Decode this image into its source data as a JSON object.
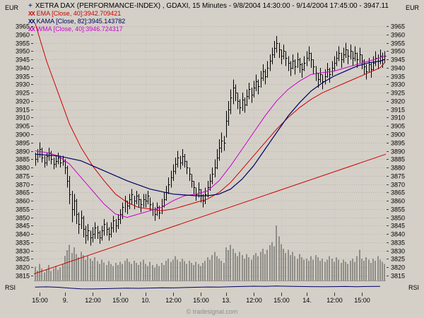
{
  "window": {
    "bg": "#d4d0c8"
  },
  "header": {
    "icon": "+",
    "title": "XETRA DAX (PERFORMANCE-INDEX) , GDAXI, 15 Minutes - 9/8/2004 14:30:00 - 9/14/2004 17:45:00 - 3947.11"
  },
  "legend": [
    {
      "marker": "XX",
      "label": "EMA [Close, 40]:3942.709421",
      "color": "#d00000"
    },
    {
      "marker": "XX",
      "label": "KAMA [Close, 82]:3945.143782",
      "color": "#000060"
    },
    {
      "marker": "XX",
      "label": "WMA [Close, 40]:3946.724317",
      "color": "#cc00cc"
    }
  ],
  "axes": {
    "left_unit": "EUR",
    "right_unit": "EUR",
    "bottom_left_unit": "RSI",
    "bottom_right_unit": "RSI",
    "price_ticks": [
      3965,
      3960,
      3955,
      3950,
      3945,
      3940,
      3935,
      3930,
      3925,
      3920,
      3915,
      3910,
      3905,
      3900,
      3895,
      3890,
      3885,
      3880,
      3875,
      3870,
      3865,
      3860,
      3855,
      3850,
      3845,
      3840,
      3835,
      3830,
      3825,
      3820,
      3815
    ],
    "x_ticks": [
      {
        "label": "15:00",
        "bar": 2
      },
      {
        "label": "9.",
        "bar": 13
      },
      {
        "label": "12:00",
        "bar": 25
      },
      {
        "label": "15:00",
        "bar": 37
      },
      {
        "label": "10.",
        "bar": 48
      },
      {
        "label": "12:00",
        "bar": 60
      },
      {
        "label": "15:00",
        "bar": 72
      },
      {
        "label": "13.",
        "bar": 83
      },
      {
        "label": "12:00",
        "bar": 95
      },
      {
        "label": "15:00",
        "bar": 107
      },
      {
        "label": "14.",
        "bar": 118
      },
      {
        "label": "12:00",
        "bar": 130
      },
      {
        "label": "15:00",
        "bar": 142
      }
    ]
  },
  "footer": {
    "text": "© tradesignal.com"
  },
  "chart_data": {
    "type": "bar",
    "subtype": "ohlc-hlc-bars-with-volume",
    "instrument": "XETRA DAX (PERFORMANCE-INDEX)",
    "symbol": "GDAXI",
    "interval": "15 Minutes",
    "range_start": "9/8/2004 14:30:00",
    "range_end": "9/14/2004 17:45:00",
    "last_price": 3947.11,
    "ylim": [
      3812,
      3968
    ],
    "colors": {
      "bg": "#d4d0c8",
      "grid": "#b9b5ae",
      "vgrid": "#c6c2bb",
      "bar": "#000000",
      "volume": "#8f8d87",
      "pane_line": "#9a968f",
      "tick": "#3c3c3c",
      "ema": "#d00000",
      "kama": "#000066",
      "wma": "#cc00cc",
      "trendline": "#d00000",
      "rsi": "#000066"
    },
    "day_start_bars": [
      13,
      48,
      83,
      118
    ],
    "bars_hlc": [
      [
        3889,
        3881,
        3885
      ],
      [
        3891,
        3883,
        3888
      ],
      [
        3895,
        3886,
        3891
      ],
      [
        3892,
        3883,
        3886
      ],
      [
        3887,
        3880,
        3883
      ],
      [
        3889,
        3881,
        3887
      ],
      [
        3892,
        3884,
        3889
      ],
      [
        3890,
        3882,
        3885
      ],
      [
        3886,
        3879,
        3882
      ],
      [
        3887,
        3880,
        3884
      ],
      [
        3889,
        3882,
        3886
      ],
      [
        3887,
        3880,
        3883
      ],
      [
        3887,
        3881,
        3884
      ],
      [
        3885,
        3876,
        3880
      ],
      [
        3881,
        3868,
        3872
      ],
      [
        3875,
        3858,
        3864
      ],
      [
        3866,
        3847,
        3855
      ],
      [
        3864,
        3851,
        3860
      ],
      [
        3861,
        3846,
        3852
      ],
      [
        3853,
        3840,
        3846
      ],
      [
        3854,
        3843,
        3850
      ],
      [
        3851,
        3838,
        3843
      ],
      [
        3845,
        3834,
        3839
      ],
      [
        3846,
        3836,
        3842
      ],
      [
        3842,
        3833,
        3838
      ],
      [
        3844,
        3835,
        3840
      ],
      [
        3847,
        3837,
        3844
      ],
      [
        3845,
        3837,
        3841
      ],
      [
        3842,
        3834,
        3838
      ],
      [
        3845,
        3836,
        3842
      ],
      [
        3849,
        3839,
        3846
      ],
      [
        3847,
        3839,
        3843
      ],
      [
        3844,
        3836,
        3840
      ],
      [
        3847,
        3838,
        3844
      ],
      [
        3851,
        3841,
        3848
      ],
      [
        3849,
        3841,
        3845
      ],
      [
        3852,
        3843,
        3849
      ],
      [
        3855,
        3846,
        3852
      ],
      [
        3859,
        3849,
        3856
      ],
      [
        3863,
        3853,
        3860
      ],
      [
        3860,
        3852,
        3857
      ],
      [
        3864,
        3855,
        3861
      ],
      [
        3867,
        3858,
        3864
      ],
      [
        3863,
        3855,
        3860
      ],
      [
        3866,
        3858,
        3863
      ],
      [
        3864,
        3856,
        3861
      ],
      [
        3861,
        3853,
        3858
      ],
      [
        3864,
        3856,
        3861
      ],
      [
        3864,
        3856,
        3860
      ],
      [
        3866,
        3858,
        3863
      ],
      [
        3862,
        3854,
        3858
      ],
      [
        3859,
        3851,
        3855
      ],
      [
        3856,
        3848,
        3852
      ],
      [
        3859,
        3851,
        3856
      ],
      [
        3857,
        3849,
        3853
      ],
      [
        3861,
        3852,
        3857
      ],
      [
        3865,
        3856,
        3861
      ],
      [
        3869,
        3860,
        3865
      ],
      [
        3874,
        3864,
        3870
      ],
      [
        3878,
        3868,
        3874
      ],
      [
        3882,
        3872,
        3878
      ],
      [
        3886,
        3876,
        3882
      ],
      [
        3890,
        3880,
        3886
      ],
      [
        3887,
        3879,
        3883
      ],
      [
        3891,
        3881,
        3887
      ],
      [
        3888,
        3880,
        3884
      ],
      [
        3884,
        3876,
        3880
      ],
      [
        3880,
        3872,
        3876
      ],
      [
        3876,
        3868,
        3872
      ],
      [
        3872,
        3864,
        3868
      ],
      [
        3868,
        3860,
        3864
      ],
      [
        3871,
        3862,
        3867
      ],
      [
        3867,
        3859,
        3863
      ],
      [
        3864,
        3856,
        3860
      ],
      [
        3868,
        3858,
        3864
      ],
      [
        3872,
        3862,
        3868
      ],
      [
        3876,
        3866,
        3872
      ],
      [
        3880,
        3870,
        3876
      ],
      [
        3885,
        3874,
        3880
      ],
      [
        3891,
        3879,
        3886
      ],
      [
        3897,
        3884,
        3892
      ],
      [
        3901,
        3889,
        3896
      ],
      [
        3899,
        3890,
        3895
      ],
      [
        3914,
        3898,
        3908
      ],
      [
        3920,
        3905,
        3915
      ],
      [
        3927,
        3912,
        3922
      ],
      [
        3933,
        3918,
        3928
      ],
      [
        3930,
        3920,
        3925
      ],
      [
        3925,
        3915,
        3920
      ],
      [
        3921,
        3912,
        3916
      ],
      [
        3925,
        3914,
        3921
      ],
      [
        3922,
        3913,
        3918
      ],
      [
        3927,
        3917,
        3923
      ],
      [
        3931,
        3921,
        3927
      ],
      [
        3928,
        3919,
        3924
      ],
      [
        3932,
        3922,
        3928
      ],
      [
        3936,
        3926,
        3932
      ],
      [
        3933,
        3924,
        3929
      ],
      [
        3938,
        3928,
        3934
      ],
      [
        3942,
        3932,
        3938
      ],
      [
        3939,
        3930,
        3935
      ],
      [
        3944,
        3934,
        3940
      ],
      [
        3948,
        3938,
        3944
      ],
      [
        3952,
        3942,
        3948
      ],
      [
        3956,
        3946,
        3952
      ],
      [
        3959,
        3949,
        3955
      ],
      [
        3955,
        3946,
        3951
      ],
      [
        3951,
        3942,
        3947
      ],
      [
        3954,
        3945,
        3950
      ],
      [
        3950,
        3941,
        3946
      ],
      [
        3947,
        3938,
        3943
      ],
      [
        3944,
        3935,
        3940
      ],
      [
        3948,
        3939,
        3944
      ],
      [
        3945,
        3936,
        3941
      ],
      [
        3949,
        3940,
        3945
      ],
      [
        3946,
        3937,
        3942
      ],
      [
        3943,
        3934,
        3939
      ],
      [
        3947,
        3938,
        3943
      ],
      [
        3950,
        3941,
        3946
      ],
      [
        3953,
        3944,
        3949
      ],
      [
        3949,
        3940,
        3945
      ],
      [
        3945,
        3936,
        3941
      ],
      [
        3941,
        3932,
        3937
      ],
      [
        3937,
        3928,
        3933
      ],
      [
        3940,
        3931,
        3936
      ],
      [
        3936,
        3927,
        3932
      ],
      [
        3939,
        3930,
        3935
      ],
      [
        3943,
        3934,
        3939
      ],
      [
        3940,
        3931,
        3936
      ],
      [
        3944,
        3935,
        3940
      ],
      [
        3947,
        3938,
        3943
      ],
      [
        3950,
        3941,
        3946
      ],
      [
        3953,
        3944,
        3949
      ],
      [
        3949,
        3940,
        3945
      ],
      [
        3952,
        3943,
        3948
      ],
      [
        3955,
        3946,
        3951
      ],
      [
        3951,
        3942,
        3947
      ],
      [
        3954,
        3945,
        3950
      ],
      [
        3950,
        3941,
        3946
      ],
      [
        3953,
        3944,
        3949
      ],
      [
        3949,
        3940,
        3945
      ],
      [
        3952,
        3943,
        3948
      ],
      [
        3948,
        3939,
        3944
      ],
      [
        3945,
        3936,
        3941
      ],
      [
        3942,
        3933,
        3938
      ],
      [
        3946,
        3937,
        3942
      ],
      [
        3943,
        3934,
        3939
      ],
      [
        3947,
        3938,
        3943
      ],
      [
        3950,
        3941,
        3946
      ],
      [
        3948,
        3939,
        3944
      ],
      [
        3951,
        3942,
        3947
      ],
      [
        3949,
        3940,
        3945
      ],
      [
        3950,
        3943,
        3947
      ]
    ],
    "volume": [
      25,
      18,
      30,
      22,
      15,
      20,
      28,
      17,
      22,
      26,
      19,
      24,
      30,
      45,
      55,
      65,
      50,
      60,
      48,
      42,
      52,
      46,
      38,
      44,
      40,
      36,
      42,
      35,
      30,
      38,
      33,
      28,
      35,
      30,
      26,
      32,
      28,
      34,
      30,
      36,
      40,
      34,
      30,
      36,
      32,
      28,
      34,
      38,
      30,
      26,
      34,
      28,
      24,
      30,
      26,
      32,
      28,
      36,
      40,
      34,
      38,
      44,
      38,
      34,
      40,
      35,
      30,
      36,
      32,
      28,
      34,
      30,
      26,
      32,
      36,
      42,
      38,
      46,
      52,
      44,
      40,
      36,
      32,
      60,
      55,
      65,
      58,
      50,
      44,
      52,
      46,
      40,
      48,
      42,
      38,
      46,
      50,
      44,
      52,
      58,
      48,
      56,
      64,
      70,
      62,
      100,
      80,
      66,
      58,
      50,
      56,
      46,
      52,
      44,
      40,
      48,
      42,
      38,
      40,
      36,
      44,
      38,
      46,
      42,
      36,
      40,
      34,
      38,
      44,
      40,
      34,
      42,
      38,
      32,
      38,
      34,
      30,
      36,
      40,
      34,
      44,
      56,
      40,
      36,
      42,
      38,
      32,
      40,
      36,
      44,
      38,
      34,
      30
    ],
    "overlays": {
      "ema": {
        "name": "EMA [Close, 40]",
        "last": 3942.709421,
        "points": [
          [
            0,
            3967
          ],
          [
            5,
            3944
          ],
          [
            10,
            3925
          ],
          [
            15,
            3906
          ],
          [
            20,
            3892
          ],
          [
            25,
            3881
          ],
          [
            30,
            3872
          ],
          [
            35,
            3864
          ],
          [
            40,
            3859
          ],
          [
            45,
            3856
          ],
          [
            50,
            3855
          ],
          [
            55,
            3854
          ],
          [
            60,
            3855
          ],
          [
            65,
            3857
          ],
          [
            70,
            3859
          ],
          [
            75,
            3861
          ],
          [
            80,
            3865
          ],
          [
            85,
            3871
          ],
          [
            90,
            3879
          ],
          [
            95,
            3887
          ],
          [
            100,
            3895
          ],
          [
            105,
            3903
          ],
          [
            110,
            3910
          ],
          [
            115,
            3916
          ],
          [
            120,
            3921
          ],
          [
            125,
            3925
          ],
          [
            130,
            3928
          ],
          [
            135,
            3931
          ],
          [
            140,
            3934
          ],
          [
            145,
            3937
          ],
          [
            150,
            3940
          ],
          [
            152,
            3943
          ]
        ]
      },
      "kama": {
        "name": "KAMA [Close, 82]",
        "last": 3945.143782,
        "points": [
          [
            0,
            3888
          ],
          [
            10,
            3887
          ],
          [
            20,
            3884
          ],
          [
            30,
            3878
          ],
          [
            40,
            3872
          ],
          [
            50,
            3867
          ],
          [
            60,
            3864
          ],
          [
            70,
            3863
          ],
          [
            75,
            3863
          ],
          [
            80,
            3864
          ],
          [
            85,
            3867
          ],
          [
            90,
            3873
          ],
          [
            95,
            3881
          ],
          [
            100,
            3891
          ],
          [
            105,
            3901
          ],
          [
            110,
            3911
          ],
          [
            115,
            3919
          ],
          [
            120,
            3926
          ],
          [
            125,
            3931
          ],
          [
            130,
            3935
          ],
          [
            135,
            3938
          ],
          [
            140,
            3941
          ],
          [
            145,
            3943
          ],
          [
            150,
            3944
          ],
          [
            152,
            3945
          ]
        ]
      },
      "wma": {
        "name": "WMA [Close, 40]",
        "last": 3946.724317,
        "points": [
          [
            0,
            3890
          ],
          [
            5,
            3889
          ],
          [
            10,
            3887
          ],
          [
            15,
            3882
          ],
          [
            20,
            3874
          ],
          [
            25,
            3866
          ],
          [
            30,
            3858
          ],
          [
            35,
            3852
          ],
          [
            40,
            3850
          ],
          [
            45,
            3852
          ],
          [
            50,
            3854
          ],
          [
            55,
            3856
          ],
          [
            60,
            3860
          ],
          [
            65,
            3863
          ],
          [
            70,
            3864
          ],
          [
            75,
            3866
          ],
          [
            80,
            3872
          ],
          [
            85,
            3881
          ],
          [
            90,
            3891
          ],
          [
            95,
            3901
          ],
          [
            100,
            3911
          ],
          [
            105,
            3920
          ],
          [
            110,
            3927
          ],
          [
            115,
            3932
          ],
          [
            120,
            3936
          ],
          [
            125,
            3937
          ],
          [
            130,
            3938
          ],
          [
            135,
            3940
          ],
          [
            140,
            3942
          ],
          [
            145,
            3944
          ],
          [
            150,
            3946
          ],
          [
            152,
            3947
          ]
        ]
      },
      "trendline": {
        "from": [
          0,
          3816
        ],
        "to": [
          152,
          3888
        ]
      }
    },
    "rsi": {
      "step": 5,
      "values": [
        52,
        55,
        50,
        38,
        30,
        28,
        32,
        35,
        38,
        36,
        40,
        44,
        42,
        46,
        50,
        54,
        52,
        56,
        60,
        64,
        62,
        66,
        63,
        60,
        58,
        56,
        58,
        60,
        57,
        60,
        62
      ]
    }
  }
}
